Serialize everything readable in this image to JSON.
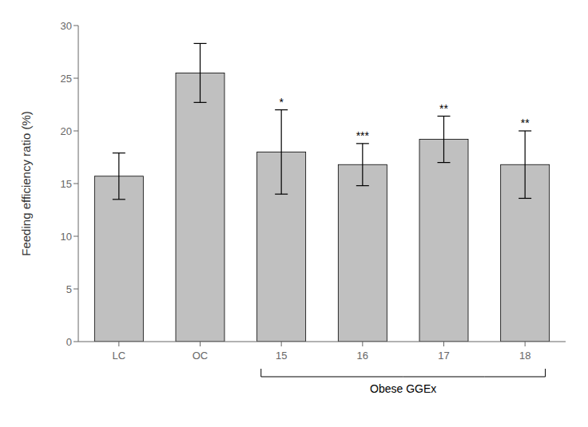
{
  "chart_data": {
    "type": "bar",
    "categories": [
      "LC",
      "OC",
      "15",
      "16",
      "17",
      "18"
    ],
    "values": [
      15.7,
      25.5,
      18.0,
      16.8,
      19.2,
      16.8
    ],
    "errors": [
      2.2,
      2.8,
      4.0,
      2.0,
      2.2,
      3.2
    ],
    "color": "#c0c0c0",
    "ylabel": "Feeding efficiency ratio (%)",
    "ylim": [
      0,
      30
    ],
    "yticks": [
      0,
      5,
      10,
      15,
      20,
      25,
      30
    ],
    "grid": false,
    "annotations": [
      {
        "text": "*",
        "category": "15"
      },
      {
        "text": "***",
        "category": "16"
      },
      {
        "text": "**",
        "category": "17"
      },
      {
        "text": "**",
        "category": "18"
      },
      {
        "text": "Obese GGEx",
        "categories": [
          "15",
          "16",
          "17",
          "18"
        ]
      }
    ]
  }
}
